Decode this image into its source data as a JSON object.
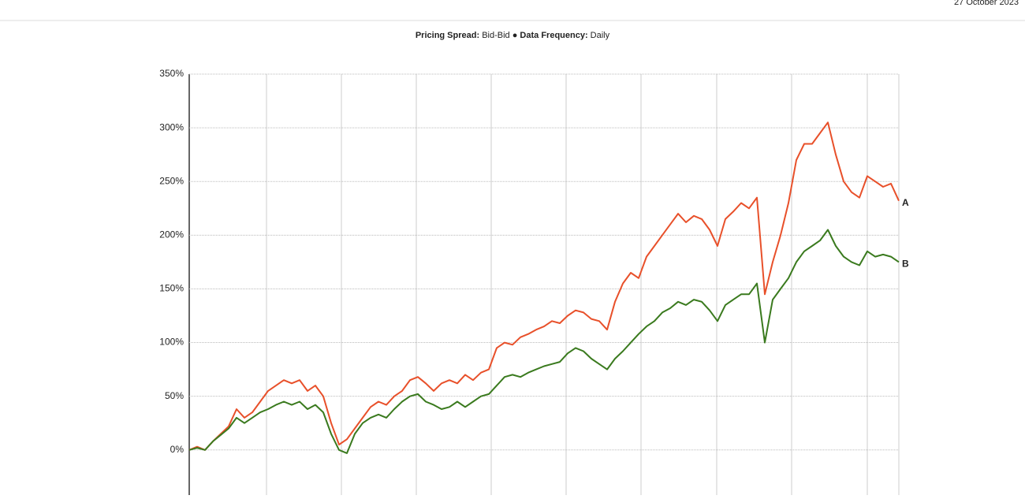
{
  "header": {
    "date": "27 October 2023"
  },
  "chart_data": {
    "type": "line",
    "subtitle": [
      {
        "text": "Pricing Spread:",
        "bold": true
      },
      {
        "text": " Bid-Bid ● ",
        "bold": false
      },
      {
        "text": "Data Frequency:",
        "bold": true
      },
      {
        "text": " Daily",
        "bold": false
      }
    ],
    "ylim": [
      -42,
      350
    ],
    "yticks": [
      {
        "value": 0,
        "label": "0%"
      },
      {
        "value": 50,
        "label": "50%"
      },
      {
        "value": 100,
        "label": "100%"
      },
      {
        "value": 150,
        "label": "150%"
      },
      {
        "value": 200,
        "label": "200%"
      },
      {
        "value": 250,
        "label": "250%"
      },
      {
        "value": 300,
        "label": "300%"
      },
      {
        "value": 350,
        "label": "350%"
      }
    ],
    "grid": true,
    "series": [
      {
        "name": "A",
        "color": "#e8502a",
        "values": [
          0,
          3,
          0,
          8,
          15,
          22,
          38,
          30,
          35,
          45,
          55,
          60,
          65,
          62,
          65,
          55,
          60,
          50,
          25,
          5,
          10,
          20,
          30,
          40,
          45,
          42,
          50,
          55,
          65,
          68,
          62,
          55,
          62,
          65,
          62,
          70,
          65,
          72,
          75,
          95,
          100,
          98,
          105,
          108,
          112,
          115,
          120,
          118,
          125,
          130,
          128,
          122,
          120,
          112,
          138,
          155,
          165,
          160,
          180,
          190,
          200,
          210,
          220,
          212,
          218,
          215,
          205,
          190,
          215,
          222,
          230,
          225,
          235,
          145,
          175,
          200,
          230,
          270,
          285,
          285,
          295,
          305,
          275,
          250,
          240,
          235,
          255,
          250,
          245,
          248,
          232
        ]
      },
      {
        "name": "B",
        "color": "#3a7a1e",
        "values": [
          0,
          2,
          0,
          8,
          14,
          20,
          30,
          25,
          30,
          35,
          38,
          42,
          45,
          42,
          45,
          38,
          42,
          35,
          15,
          0,
          -3,
          15,
          25,
          30,
          33,
          30,
          38,
          45,
          50,
          52,
          45,
          42,
          38,
          40,
          45,
          40,
          45,
          50,
          52,
          60,
          68,
          70,
          68,
          72,
          75,
          78,
          80,
          82,
          90,
          95,
          92,
          85,
          80,
          75,
          85,
          92,
          100,
          108,
          115,
          120,
          128,
          132,
          138,
          135,
          140,
          138,
          130,
          120,
          135,
          140,
          145,
          145,
          155,
          100,
          140,
          150,
          160,
          175,
          185,
          190,
          195,
          205,
          190,
          180,
          175,
          172,
          185,
          180,
          182,
          180,
          175
        ]
      }
    ]
  }
}
